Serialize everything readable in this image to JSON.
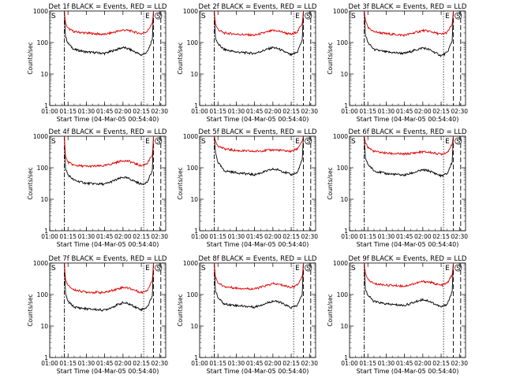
{
  "figure": {
    "ylabel": "Counts/sec",
    "xlabel": "Start Time (04-Mar-05 00:54:40)",
    "x_tick_labels": [
      "01:00",
      "01:15",
      "01:30",
      "01:45",
      "02:00",
      "02:15",
      "02:30"
    ],
    "y_tick_labels": [
      "1",
      "10",
      "100",
      "1000"
    ],
    "marker_labels": {
      "s": "S",
      "e": "E"
    },
    "colors": {
      "events": "#000000",
      "lld": "#e00000"
    }
  },
  "chart_data": [
    {
      "type": "line",
      "title": "Det 1f BLACK = Events, RED = LLD",
      "xlim": [
        "01:00",
        "02:35"
      ],
      "ylim": [
        1,
        1000
      ],
      "yscale": "log",
      "markers": {
        "S_dashdot": "01:12",
        "E_dotted": "02:17",
        "dashed1": "02:25",
        "dashed2": "02:31"
      },
      "series": [
        {
          "name": "Events",
          "x": [
            "01:12",
            "01:13",
            "01:15",
            "01:20",
            "01:30",
            "01:45",
            "02:00",
            "02:05",
            "02:15",
            "02:20",
            "02:24",
            "02:25"
          ],
          "values": [
            1000,
            150,
            95,
            60,
            50,
            45,
            70,
            62,
            40,
            50,
            120,
            1000
          ]
        },
        {
          "name": "LLD",
          "x": [
            "01:12",
            "01:13",
            "01:15",
            "01:20",
            "01:30",
            "01:45",
            "02:00",
            "02:05",
            "02:15",
            "02:20",
            "02:24",
            "02:25"
          ],
          "values": [
            1000,
            400,
            280,
            220,
            200,
            180,
            250,
            240,
            190,
            230,
            400,
            1000
          ]
        }
      ]
    },
    {
      "type": "line",
      "title": "Det 2f BLACK = Events, RED = LLD",
      "xlim": [
        "01:00",
        "02:35"
      ],
      "ylim": [
        1,
        1000
      ],
      "yscale": "log",
      "markers": {
        "S_dashdot": "01:12",
        "E_dotted": "02:17",
        "dashed1": "02:25",
        "dashed2": "02:31"
      },
      "series": [
        {
          "name": "Events",
          "x": [
            "01:12",
            "01:13",
            "01:15",
            "01:20",
            "01:30",
            "01:45",
            "02:00",
            "02:05",
            "02:15",
            "02:20",
            "02:24",
            "02:25"
          ],
          "values": [
            1000,
            140,
            90,
            60,
            50,
            45,
            70,
            62,
            40,
            50,
            120,
            1000
          ]
        },
        {
          "name": "LLD",
          "x": [
            "01:12",
            "01:13",
            "01:15",
            "01:20",
            "01:30",
            "01:45",
            "02:00",
            "02:05",
            "02:15",
            "02:20",
            "02:24",
            "02:25"
          ],
          "values": [
            1000,
            380,
            260,
            200,
            185,
            170,
            240,
            230,
            180,
            220,
            400,
            1000
          ]
        }
      ]
    },
    {
      "type": "line",
      "title": "Det 3f BLACK = Events, RED = LLD",
      "xlim": [
        "01:00",
        "02:35"
      ],
      "ylim": [
        1,
        1000
      ],
      "yscale": "log",
      "markers": {
        "S_dashdot": "01:12",
        "E_dotted": "02:17",
        "dashed1": "02:25",
        "dashed2": "02:31"
      },
      "series": [
        {
          "name": "Events",
          "x": [
            "01:12",
            "01:13",
            "01:15",
            "01:20",
            "01:30",
            "01:45",
            "02:00",
            "02:05",
            "02:15",
            "02:20",
            "02:24",
            "02:25"
          ],
          "values": [
            1000,
            180,
            100,
            60,
            50,
            45,
            68,
            60,
            38,
            48,
            110,
            1000
          ]
        },
        {
          "name": "LLD",
          "x": [
            "01:12",
            "01:13",
            "01:15",
            "01:20",
            "01:30",
            "01:45",
            "02:00",
            "02:05",
            "02:15",
            "02:20",
            "02:24",
            "02:25"
          ],
          "values": [
            1000,
            500,
            300,
            220,
            190,
            170,
            240,
            230,
            180,
            210,
            380,
            1000
          ]
        }
      ]
    },
    {
      "type": "line",
      "title": "Det 4f BLACK = Events, RED = LLD",
      "xlim": [
        "01:00",
        "02:35"
      ],
      "ylim": [
        1,
        1000
      ],
      "yscale": "log",
      "markers": {
        "S_dashdot": "01:12",
        "E_dotted": "02:17",
        "dashed1": "02:25",
        "dashed2": "02:31"
      },
      "series": [
        {
          "name": "Events",
          "x": [
            "01:12",
            "01:13",
            "01:15",
            "01:20",
            "01:30",
            "01:45",
            "02:00",
            "02:05",
            "02:15",
            "02:20",
            "02:24",
            "02:25"
          ],
          "values": [
            1000,
            90,
            60,
            40,
            32,
            30,
            50,
            45,
            30,
            35,
            80,
            1000
          ]
        },
        {
          "name": "LLD",
          "x": [
            "01:12",
            "01:13",
            "01:15",
            "01:20",
            "01:30",
            "01:45",
            "02:00",
            "02:05",
            "02:15",
            "02:20",
            "02:24",
            "02:25"
          ],
          "values": [
            1000,
            220,
            150,
            120,
            110,
            115,
            170,
            160,
            115,
            140,
            250,
            1000
          ]
        }
      ]
    },
    {
      "type": "line",
      "title": "Det 5f BLACK = Events, RED = LLD",
      "xlim": [
        "01:00",
        "02:35"
      ],
      "ylim": [
        1,
        1000
      ],
      "yscale": "log",
      "markers": {
        "S_dashdot": "01:12",
        "E_dotted": "02:17",
        "dashed1": "02:25",
        "dashed2": "02:31"
      },
      "series": [
        {
          "name": "Events",
          "x": [
            "01:12",
            "01:13",
            "01:15",
            "01:20",
            "01:30",
            "01:45",
            "02:00",
            "02:05",
            "02:15",
            "02:20",
            "02:24",
            "02:25"
          ],
          "values": [
            1000,
            300,
            150,
            80,
            70,
            60,
            90,
            85,
            60,
            70,
            180,
            1000
          ]
        },
        {
          "name": "LLD",
          "x": [
            "01:12",
            "01:13",
            "01:15",
            "01:20",
            "01:30",
            "01:45",
            "02:00",
            "02:05",
            "02:15",
            "02:20",
            "02:24",
            "02:25"
          ],
          "values": [
            1000,
            700,
            500,
            400,
            350,
            330,
            370,
            360,
            330,
            400,
            700,
            1000
          ]
        }
      ]
    },
    {
      "type": "line",
      "title": "Det 6f BLACK = Events, RED = LLD",
      "xlim": [
        "01:00",
        "02:35"
      ],
      "ylim": [
        1,
        1000
      ],
      "yscale": "log",
      "markers": {
        "S_dashdot": "01:12",
        "E_dotted": "02:17",
        "dashed1": "02:25",
        "dashed2": "02:31"
      },
      "series": [
        {
          "name": "Events",
          "x": [
            "01:12",
            "01:13",
            "01:15",
            "01:20",
            "01:30",
            "01:45",
            "02:00",
            "02:05",
            "02:15",
            "02:20",
            "02:24",
            "02:25"
          ],
          "values": [
            1000,
            200,
            130,
            80,
            65,
            58,
            85,
            80,
            55,
            65,
            150,
            1000
          ]
        },
        {
          "name": "LLD",
          "x": [
            "01:12",
            "01:13",
            "01:15",
            "01:20",
            "01:30",
            "01:45",
            "02:00",
            "02:05",
            "02:15",
            "02:20",
            "02:24",
            "02:25"
          ],
          "values": [
            1000,
            650,
            450,
            330,
            290,
            270,
            320,
            310,
            270,
            310,
            550,
            1000
          ]
        }
      ]
    },
    {
      "type": "line",
      "title": "Det 7f BLACK = Events, RED = LLD",
      "xlim": [
        "01:00",
        "02:35"
      ],
      "ylim": [
        1,
        1000
      ],
      "yscale": "log",
      "markers": {
        "S_dashdot": "01:12",
        "E_dotted": "02:17",
        "dashed1": "02:25",
        "dashed2": "02:31"
      },
      "series": [
        {
          "name": "Events",
          "x": [
            "01:12",
            "01:13",
            "01:15",
            "01:20",
            "01:30",
            "01:45",
            "02:00",
            "02:05",
            "02:15",
            "02:20",
            "02:24",
            "02:25"
          ],
          "values": [
            1000,
            100,
            60,
            40,
            35,
            32,
            55,
            50,
            33,
            40,
            90,
            1000
          ]
        },
        {
          "name": "LLD",
          "x": [
            "01:12",
            "01:13",
            "01:15",
            "01:20",
            "01:30",
            "01:45",
            "02:00",
            "02:05",
            "02:15",
            "02:20",
            "02:24",
            "02:25"
          ],
          "values": [
            1000,
            300,
            190,
            140,
            120,
            115,
            170,
            160,
            115,
            140,
            280,
            1000
          ]
        }
      ]
    },
    {
      "type": "line",
      "title": "Det 8f BLACK = Events, RED = LLD",
      "xlim": [
        "01:00",
        "02:35"
      ],
      "ylim": [
        1,
        1000
      ],
      "yscale": "log",
      "markers": {
        "S_dashdot": "01:12",
        "E_dotted": "02:17",
        "dashed1": "02:25",
        "dashed2": "02:31"
      },
      "series": [
        {
          "name": "Events",
          "x": [
            "01:12",
            "01:13",
            "01:15",
            "01:20",
            "01:30",
            "01:45",
            "02:00",
            "02:05",
            "02:15",
            "02:20",
            "02:24",
            "02:25"
          ],
          "values": [
            1000,
            130,
            80,
            50,
            45,
            40,
            62,
            58,
            38,
            45,
            100,
            1000
          ]
        },
        {
          "name": "LLD",
          "x": [
            "01:12",
            "01:13",
            "01:15",
            "01:20",
            "01:30",
            "01:45",
            "02:00",
            "02:05",
            "02:15",
            "02:20",
            "02:24",
            "02:25"
          ],
          "values": [
            1000,
            350,
            240,
            180,
            160,
            150,
            220,
            210,
            170,
            200,
            360,
            1000
          ]
        }
      ]
    },
    {
      "type": "line",
      "title": "Det 9f BLACK = Events, RED = LLD",
      "xlim": [
        "01:00",
        "02:35"
      ],
      "ylim": [
        1,
        1000
      ],
      "yscale": "log",
      "markers": {
        "S_dashdot": "01:12",
        "E_dotted": "02:17",
        "dashed1": "02:25",
        "dashed2": "02:31"
      },
      "series": [
        {
          "name": "Events",
          "x": [
            "01:12",
            "01:13",
            "01:15",
            "01:20",
            "01:30",
            "01:45",
            "02:00",
            "02:05",
            "02:15",
            "02:20",
            "02:24",
            "02:25"
          ],
          "values": [
            1000,
            150,
            95,
            60,
            50,
            45,
            70,
            62,
            40,
            50,
            120,
            1000
          ]
        },
        {
          "name": "LLD",
          "x": [
            "01:12",
            "01:13",
            "01:15",
            "01:20",
            "01:30",
            "01:45",
            "02:00",
            "02:05",
            "02:15",
            "02:20",
            "02:24",
            "02:25"
          ],
          "values": [
            1000,
            450,
            300,
            220,
            200,
            185,
            260,
            250,
            195,
            230,
            420,
            1000
          ]
        }
      ]
    }
  ]
}
